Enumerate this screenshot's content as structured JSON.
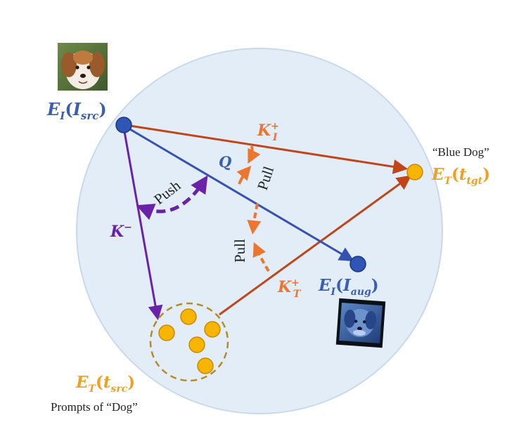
{
  "labels": {
    "ei_src": {
      "main": "E",
      "sub": "I",
      "arg": "I",
      "arg_sub": "src"
    },
    "ei_aug": {
      "main": "E",
      "sub": "I",
      "arg": "I",
      "arg_sub": "aug"
    },
    "et_tgt": {
      "main": "E",
      "sub": "T",
      "arg": "t",
      "arg_sub": "tgt"
    },
    "et_src": {
      "main": "E",
      "sub": "T",
      "arg": "t",
      "arg_sub": "src"
    },
    "k_i_plus": {
      "main": "K",
      "sup": "+",
      "sub": "I"
    },
    "k_t_plus": {
      "main": "K",
      "sup": "+",
      "sub": "T"
    },
    "k_minus": {
      "main": "K",
      "sup": "−"
    },
    "q": "Q",
    "push": "Push",
    "pull_top": "Pull",
    "pull_bottom": "Pull",
    "blue_dog_caption": "“Blue Dog”",
    "prompts_caption": "Prompts of “Dog”"
  },
  "colors": {
    "sphere_fill": "#e3edf7",
    "sphere_stroke": "#c9d9ea",
    "image_node": "#2f55b5",
    "text_node": "#f7b400",
    "text_node_stroke": "#c98a00",
    "blue_label": "#3a5fb0",
    "orange_label": "#f0a020",
    "arrow_red": "#c0461a",
    "arrow_blue": "#3452b2",
    "arrow_purple": "#6a23a8",
    "pull_orange": "#ec7530",
    "cluster_ring": "#b08d28"
  }
}
